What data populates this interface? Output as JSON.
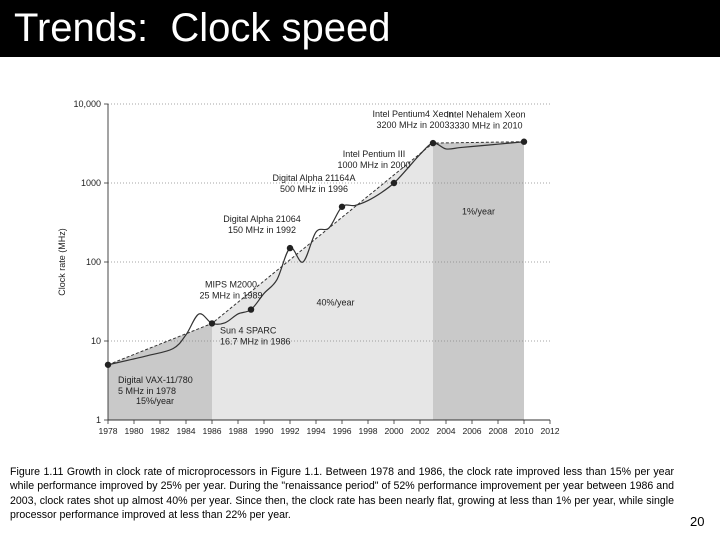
{
  "slide": {
    "title": "Trends:  Clock speed",
    "caption": "Figure 1.11 Growth in clock rate of microprocessors in Figure 1.1. Between 1978 and 1986, the clock rate improved less than 15% per year while performance improved by 25% per year. During the \"renaissance period\" of 52% performance improvement per year between 1986 and 2003, clock rates shot up almost 40% per year. Since then, the clock rate has been nearly flat, growing at less than 1% per year, while single processor performance improved at less than 22% per year.",
    "page_number": "20"
  },
  "colors": {
    "title_bar": "#000000",
    "region_dark": "#c9c9c9",
    "region_light": "#e6e6e6",
    "line": "#333333",
    "point": "#222222"
  },
  "chart_data": {
    "type": "line",
    "title": "",
    "xlabel": "",
    "ylabel": "Clock rate (MHz)",
    "yscale": "log",
    "xlim": [
      1978,
      2012
    ],
    "ylim": [
      1,
      10000
    ],
    "x_ticks": [
      "1978",
      "1980",
      "1982",
      "1984",
      "1986",
      "1988",
      "1990",
      "1992",
      "1994",
      "1996",
      "1998",
      "2000",
      "2002",
      "2004",
      "2006",
      "2008",
      "2010",
      "2012"
    ],
    "y_ticks": [
      {
        "value": 1,
        "label": "1"
      },
      {
        "value": 10,
        "label": "10"
      },
      {
        "value": 100,
        "label": "100"
      },
      {
        "value": 1000,
        "label": "1000"
      },
      {
        "value": 10000,
        "label": "10,000"
      }
    ],
    "grid": "horizontal dotted",
    "series": [
      {
        "points": [
          {
            "x": 1978,
            "y": 5
          },
          {
            "x": 1981,
            "y": 6.5
          },
          {
            "x": 1983,
            "y": 8
          },
          {
            "x": 1984,
            "y": 12
          },
          {
            "x": 1985,
            "y": 22
          },
          {
            "x": 1986,
            "y": 16.7
          },
          {
            "x": 1987,
            "y": 17
          },
          {
            "x": 1988,
            "y": 22
          },
          {
            "x": 1989,
            "y": 25
          },
          {
            "x": 1990,
            "y": 40
          },
          {
            "x": 1991,
            "y": 60
          },
          {
            "x": 1992,
            "y": 150
          },
          {
            "x": 1993,
            "y": 100
          },
          {
            "x": 1994,
            "y": 240
          },
          {
            "x": 1995,
            "y": 270
          },
          {
            "x": 1996,
            "y": 500
          },
          {
            "x": 1997,
            "y": 520
          },
          {
            "x": 1998,
            "y": 600
          },
          {
            "x": 1999,
            "y": 750
          },
          {
            "x": 2000,
            "y": 1000
          },
          {
            "x": 2001,
            "y": 1500
          },
          {
            "x": 2002,
            "y": 2300
          },
          {
            "x": 2003,
            "y": 3200
          },
          {
            "x": 2004,
            "y": 2700
          },
          {
            "x": 2005,
            "y": 2800
          },
          {
            "x": 2006,
            "y": 2900
          },
          {
            "x": 2008,
            "y": 3100
          },
          {
            "x": 2010,
            "y": 3330
          }
        ]
      }
    ],
    "trend_line": [
      {
        "x": 1978,
        "y": 5
      },
      {
        "x": 1986,
        "y": 16.7
      },
      {
        "x": 2003,
        "y": 3200
      },
      {
        "x": 2010,
        "y": 3330
      }
    ],
    "labeled_points": [
      {
        "x": 1978,
        "y": 5,
        "label": [
          "Digital VAX-11/780",
          "5 MHz in 1978"
        ]
      },
      {
        "x": 1986,
        "y": 16.7,
        "label": [
          "Sun 4 SPARC",
          "16.7 MHz in 1986"
        ]
      },
      {
        "x": 1989,
        "y": 25,
        "label": [
          "MIPS M2000",
          "25 MHz in 1989"
        ]
      },
      {
        "x": 1992,
        "y": 150,
        "label": [
          "Digital Alpha 21064",
          "150 MHz in 1992"
        ]
      },
      {
        "x": 1996,
        "y": 500,
        "label": [
          "Digital Alpha 21164A",
          "500 MHz in 1996"
        ]
      },
      {
        "x": 2000,
        "y": 1000,
        "label": [
          "Intel Pentium III",
          "1000 MHz in 2000"
        ]
      },
      {
        "x": 2003,
        "y": 3200,
        "label": [
          "Intel Pentium4 Xeon",
          "3200 MHz in 2003"
        ]
      },
      {
        "x": 2010,
        "y": 3330,
        "label": [
          "Intel Nehalem Xeon",
          "3330 MHz in 2010"
        ]
      }
    ],
    "regions": [
      {
        "x_start": 1978,
        "x_end": 1986,
        "annotation": "15%/year"
      },
      {
        "x_start": 1986,
        "x_end": 2003,
        "annotation": "40%/year"
      },
      {
        "x_start": 2003,
        "x_end": 2010,
        "annotation": "1%/year"
      }
    ]
  }
}
